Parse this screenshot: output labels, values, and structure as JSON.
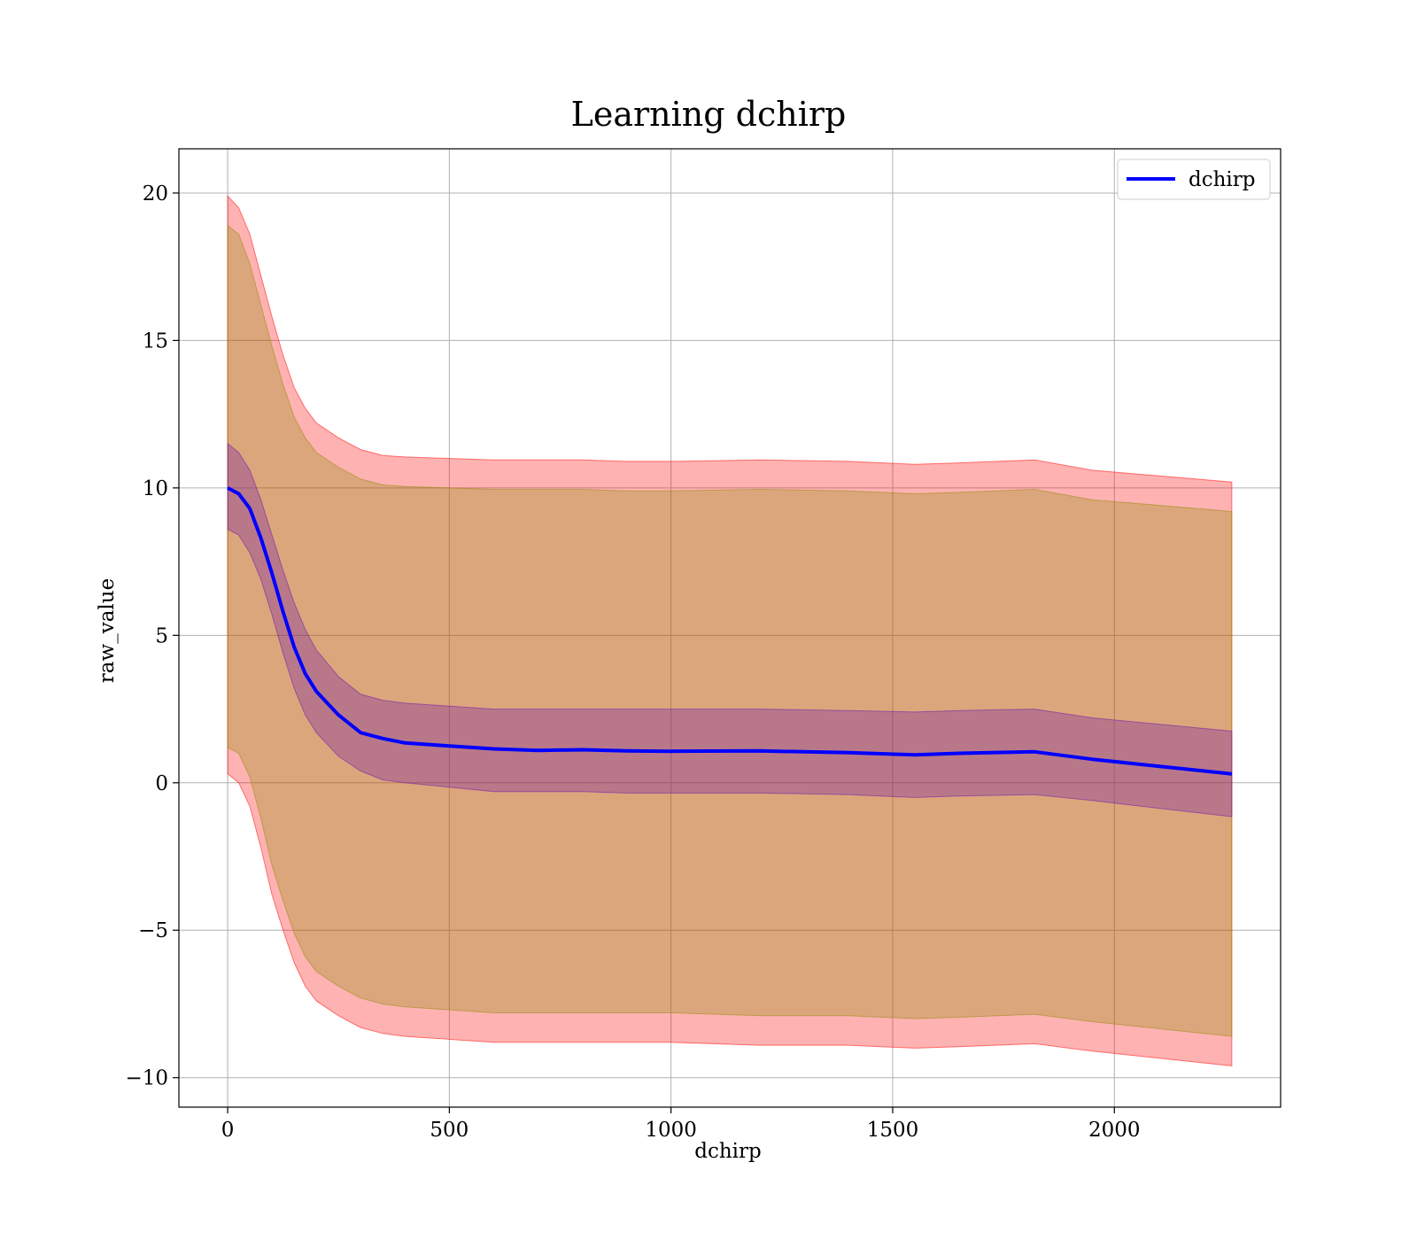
{
  "chart_data": {
    "type": "line",
    "title": "Learning dchirp",
    "xlabel": "dchirp",
    "ylabel": "raw_value",
    "xlim": [
      -110,
      2375
    ],
    "ylim": [
      -11,
      21.5
    ],
    "xticks": [
      0,
      500,
      1000,
      1500,
      2000
    ],
    "yticks": [
      -10,
      -5,
      0,
      5,
      10,
      15,
      20
    ],
    "xtick_labels": [
      "0",
      "500",
      "1000",
      "1500",
      "2000"
    ],
    "ytick_labels": [
      "−10",
      "−5",
      "0",
      "5",
      "10",
      "15",
      "20"
    ],
    "grid": true,
    "legend": {
      "position": "top-right",
      "entries": [
        "dchirp"
      ]
    },
    "colors": {
      "line": "#0000ff",
      "outer_band": "#ff0000",
      "middle_band": "#8b8b00",
      "inner_band": "#6a0dad"
    },
    "x": [
      0,
      25,
      50,
      75,
      100,
      125,
      150,
      175,
      200,
      250,
      300,
      350,
      400,
      500,
      600,
      700,
      800,
      900,
      1000,
      1200,
      1400,
      1550,
      1650,
      1820,
      1950,
      2265
    ],
    "series": [
      {
        "name": "dchirp",
        "values": [
          10.0,
          9.8,
          9.3,
          8.3,
          7.1,
          5.8,
          4.6,
          3.7,
          3.1,
          2.3,
          1.7,
          1.5,
          1.35,
          1.25,
          1.15,
          1.1,
          1.12,
          1.08,
          1.07,
          1.08,
          1.02,
          0.95,
          1.0,
          1.05,
          0.8,
          0.3
        ]
      }
    ],
    "bands": [
      {
        "band": "outer",
        "upper": [
          19.9,
          19.5,
          18.6,
          17.2,
          15.8,
          14.5,
          13.4,
          12.7,
          12.2,
          11.7,
          11.3,
          11.1,
          11.05,
          11.0,
          10.95,
          10.95,
          10.95,
          10.9,
          10.9,
          10.95,
          10.9,
          10.8,
          10.85,
          10.95,
          10.6,
          10.2
        ],
        "lower": [
          0.3,
          0.0,
          -0.8,
          -2.2,
          -3.8,
          -5.0,
          -6.1,
          -6.9,
          -7.4,
          -7.9,
          -8.3,
          -8.5,
          -8.6,
          -8.7,
          -8.8,
          -8.8,
          -8.8,
          -8.8,
          -8.8,
          -8.9,
          -8.9,
          -9.0,
          -8.95,
          -8.85,
          -9.1,
          -9.6
        ]
      },
      {
        "band": "middle",
        "upper": [
          18.9,
          18.6,
          17.6,
          16.2,
          14.8,
          13.5,
          12.4,
          11.7,
          11.2,
          10.7,
          10.3,
          10.1,
          10.05,
          10.0,
          9.95,
          9.95,
          9.95,
          9.9,
          9.9,
          9.95,
          9.9,
          9.8,
          9.85,
          9.95,
          9.6,
          9.2
        ],
        "lower": [
          1.2,
          1.0,
          0.2,
          -1.2,
          -2.8,
          -4.0,
          -5.1,
          -5.9,
          -6.4,
          -6.9,
          -7.3,
          -7.5,
          -7.6,
          -7.7,
          -7.8,
          -7.8,
          -7.8,
          -7.8,
          -7.8,
          -7.9,
          -7.9,
          -8.0,
          -7.95,
          -7.85,
          -8.1,
          -8.6
        ]
      },
      {
        "band": "inner",
        "upper": [
          11.5,
          11.2,
          10.6,
          9.6,
          8.4,
          7.2,
          6.1,
          5.2,
          4.5,
          3.6,
          3.0,
          2.8,
          2.7,
          2.6,
          2.5,
          2.5,
          2.5,
          2.5,
          2.5,
          2.5,
          2.45,
          2.4,
          2.45,
          2.5,
          2.2,
          1.75
        ],
        "lower": [
          8.6,
          8.4,
          7.8,
          6.9,
          5.7,
          4.4,
          3.2,
          2.3,
          1.7,
          0.9,
          0.4,
          0.1,
          0.0,
          -0.15,
          -0.3,
          -0.3,
          -0.3,
          -0.35,
          -0.35,
          -0.35,
          -0.4,
          -0.5,
          -0.45,
          -0.4,
          -0.6,
          -1.15
        ]
      }
    ]
  }
}
